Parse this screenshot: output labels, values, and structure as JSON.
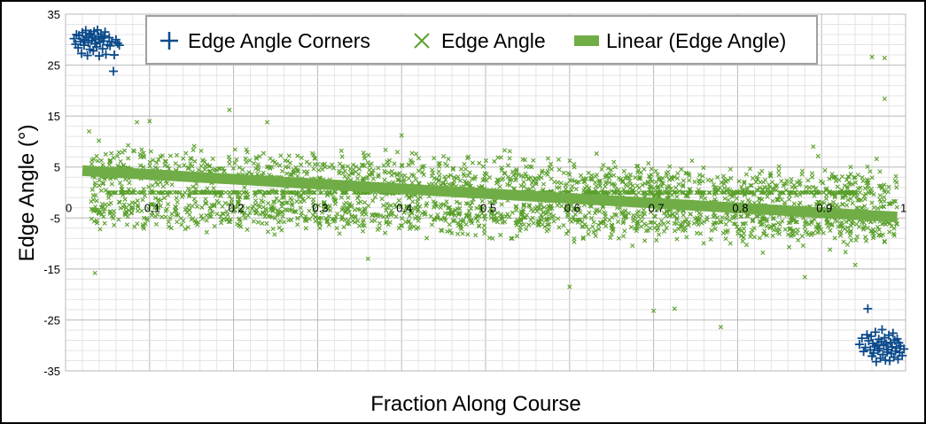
{
  "chart_data": {
    "type": "scatter",
    "xlabel": "Fraction Along Course",
    "ylabel": "Edge Angle (°)",
    "xlim": [
      0,
      1
    ],
    "ylim": [
      -35,
      35
    ],
    "x_ticks": [
      0,
      0.1,
      0.2,
      0.3,
      0.4,
      0.5,
      0.6,
      0.7,
      0.8,
      0.9,
      1
    ],
    "x_tick_labels": [
      "0",
      "0.1",
      "0.2",
      "0.3",
      "0.4",
      "0.5",
      "0.6",
      "0.7",
      "0.8",
      "0.9",
      "1"
    ],
    "y_ticks": [
      35,
      25,
      15,
      5,
      -5,
      -15,
      -25,
      -35
    ],
    "y_tick_labels": [
      "35",
      "25",
      "15",
      "5",
      "-5",
      "-15",
      "-25",
      "-35"
    ],
    "grid": true,
    "legend_position": "top",
    "series": [
      {
        "name": "Edge Angle Corners",
        "marker": "plus",
        "color": "#0b4a8b",
        "points": [
          [
            0.01,
            30.2
          ],
          [
            0.012,
            29.1
          ],
          [
            0.013,
            31.0
          ],
          [
            0.015,
            28.4
          ],
          [
            0.016,
            30.8
          ],
          [
            0.018,
            29.6
          ],
          [
            0.019,
            27.3
          ],
          [
            0.02,
            31.4
          ],
          [
            0.021,
            30.0
          ],
          [
            0.022,
            28.9
          ],
          [
            0.023,
            29.9
          ],
          [
            0.024,
            31.8
          ],
          [
            0.025,
            30.5
          ],
          [
            0.026,
            26.9
          ],
          [
            0.027,
            29.4
          ],
          [
            0.028,
            30.9
          ],
          [
            0.029,
            28.1
          ],
          [
            0.03,
            31.2
          ],
          [
            0.031,
            29.8
          ],
          [
            0.032,
            30.4
          ],
          [
            0.033,
            27.8
          ],
          [
            0.034,
            31.6
          ],
          [
            0.035,
            29.2
          ],
          [
            0.036,
            30.1
          ],
          [
            0.037,
            28.6
          ],
          [
            0.038,
            31.9
          ],
          [
            0.039,
            30.6
          ],
          [
            0.04,
            26.8
          ],
          [
            0.041,
            29.5
          ],
          [
            0.042,
            31.1
          ],
          [
            0.043,
            30.3
          ],
          [
            0.044,
            28.2
          ],
          [
            0.045,
            29.7
          ],
          [
            0.046,
            30.7
          ],
          [
            0.047,
            31.5
          ],
          [
            0.048,
            27.1
          ],
          [
            0.05,
            29.0
          ],
          [
            0.052,
            30.4
          ],
          [
            0.053,
            28.8
          ],
          [
            0.055,
            29.6
          ],
          [
            0.057,
            23.8
          ],
          [
            0.058,
            27.0
          ],
          [
            0.06,
            30.0
          ],
          [
            0.062,
            29.3
          ],
          [
            0.064,
            28.9
          ],
          [
            0.945,
            -29.8
          ],
          [
            0.948,
            -28.6
          ],
          [
            0.95,
            -31.2
          ],
          [
            0.952,
            -30.4
          ],
          [
            0.954,
            -27.9
          ],
          [
            0.955,
            -22.8
          ],
          [
            0.956,
            -29.1
          ],
          [
            0.958,
            -30.9
          ],
          [
            0.959,
            -28.2
          ],
          [
            0.96,
            -32.1
          ],
          [
            0.961,
            -29.6
          ],
          [
            0.962,
            -31.5
          ],
          [
            0.963,
            -30.2
          ],
          [
            0.964,
            -27.4
          ],
          [
            0.965,
            -33.2
          ],
          [
            0.966,
            -29.9
          ],
          [
            0.967,
            -31.0
          ],
          [
            0.968,
            -28.8
          ],
          [
            0.969,
            -30.6
          ],
          [
            0.97,
            -32.5
          ],
          [
            0.971,
            -29.3
          ],
          [
            0.972,
            -26.9
          ],
          [
            0.973,
            -31.8
          ],
          [
            0.974,
            -30.0
          ],
          [
            0.975,
            -28.5
          ],
          [
            0.976,
            -32.9
          ],
          [
            0.977,
            -29.7
          ],
          [
            0.978,
            -31.3
          ],
          [
            0.979,
            -30.8
          ],
          [
            0.98,
            -28.0
          ],
          [
            0.981,
            -33.0
          ],
          [
            0.982,
            -29.4
          ],
          [
            0.983,
            -31.6
          ],
          [
            0.984,
            -30.3
          ],
          [
            0.985,
            -27.6
          ],
          [
            0.986,
            -32.3
          ],
          [
            0.987,
            -29.0
          ],
          [
            0.988,
            -31.1
          ],
          [
            0.989,
            -30.5
          ],
          [
            0.99,
            -28.7
          ],
          [
            0.991,
            -32.7
          ],
          [
            0.992,
            -29.5
          ],
          [
            0.993,
            -31.4
          ],
          [
            0.994,
            -30.1
          ],
          [
            0.996,
            -32.0
          ],
          [
            0.998,
            -30.7
          ]
        ]
      },
      {
        "name": "Edge Angle",
        "marker": "x",
        "color": "#5aa02c",
        "generated_from": [
          {
            "x_from": 0.03,
            "x_to": 0.99,
            "center_from": 5.0,
            "center_to": 0.0,
            "spread": 3.2,
            "count": 1200
          },
          {
            "x_from": 0.03,
            "x_to": 0.99,
            "center_from": -3.0,
            "center_to": -6.0,
            "spread": 2.8,
            "count": 1300
          },
          {
            "x_from": 0.05,
            "x_to": 0.95,
            "center_from": 0.0,
            "center_to": 0.0,
            "spread": 0.05,
            "count": 450
          }
        ],
        "outliers": [
          [
            0.028,
            12.0
          ],
          [
            0.035,
            -15.8
          ],
          [
            0.06,
            29.0
          ],
          [
            0.085,
            13.8
          ],
          [
            0.1,
            14.0
          ],
          [
            0.195,
            16.2
          ],
          [
            0.24,
            13.8
          ],
          [
            0.36,
            -13.0
          ],
          [
            0.4,
            11.2
          ],
          [
            0.6,
            -18.5
          ],
          [
            0.7,
            -23.2
          ],
          [
            0.725,
            -22.8
          ],
          [
            0.78,
            -26.4
          ],
          [
            0.88,
            -16.6
          ],
          [
            0.89,
            9.0
          ],
          [
            0.94,
            -14.2
          ],
          [
            0.96,
            26.6
          ],
          [
            0.975,
            26.4
          ],
          [
            0.975,
            18.4
          ],
          [
            0.91,
            -11.2
          ],
          [
            0.83,
            -11.8
          ]
        ]
      },
      {
        "name": "Linear (Edge Angle)",
        "type": "line",
        "color": "#70ad47",
        "points": [
          [
            0.02,
            4.3
          ],
          [
            0.99,
            -4.8
          ]
        ]
      }
    ]
  }
}
